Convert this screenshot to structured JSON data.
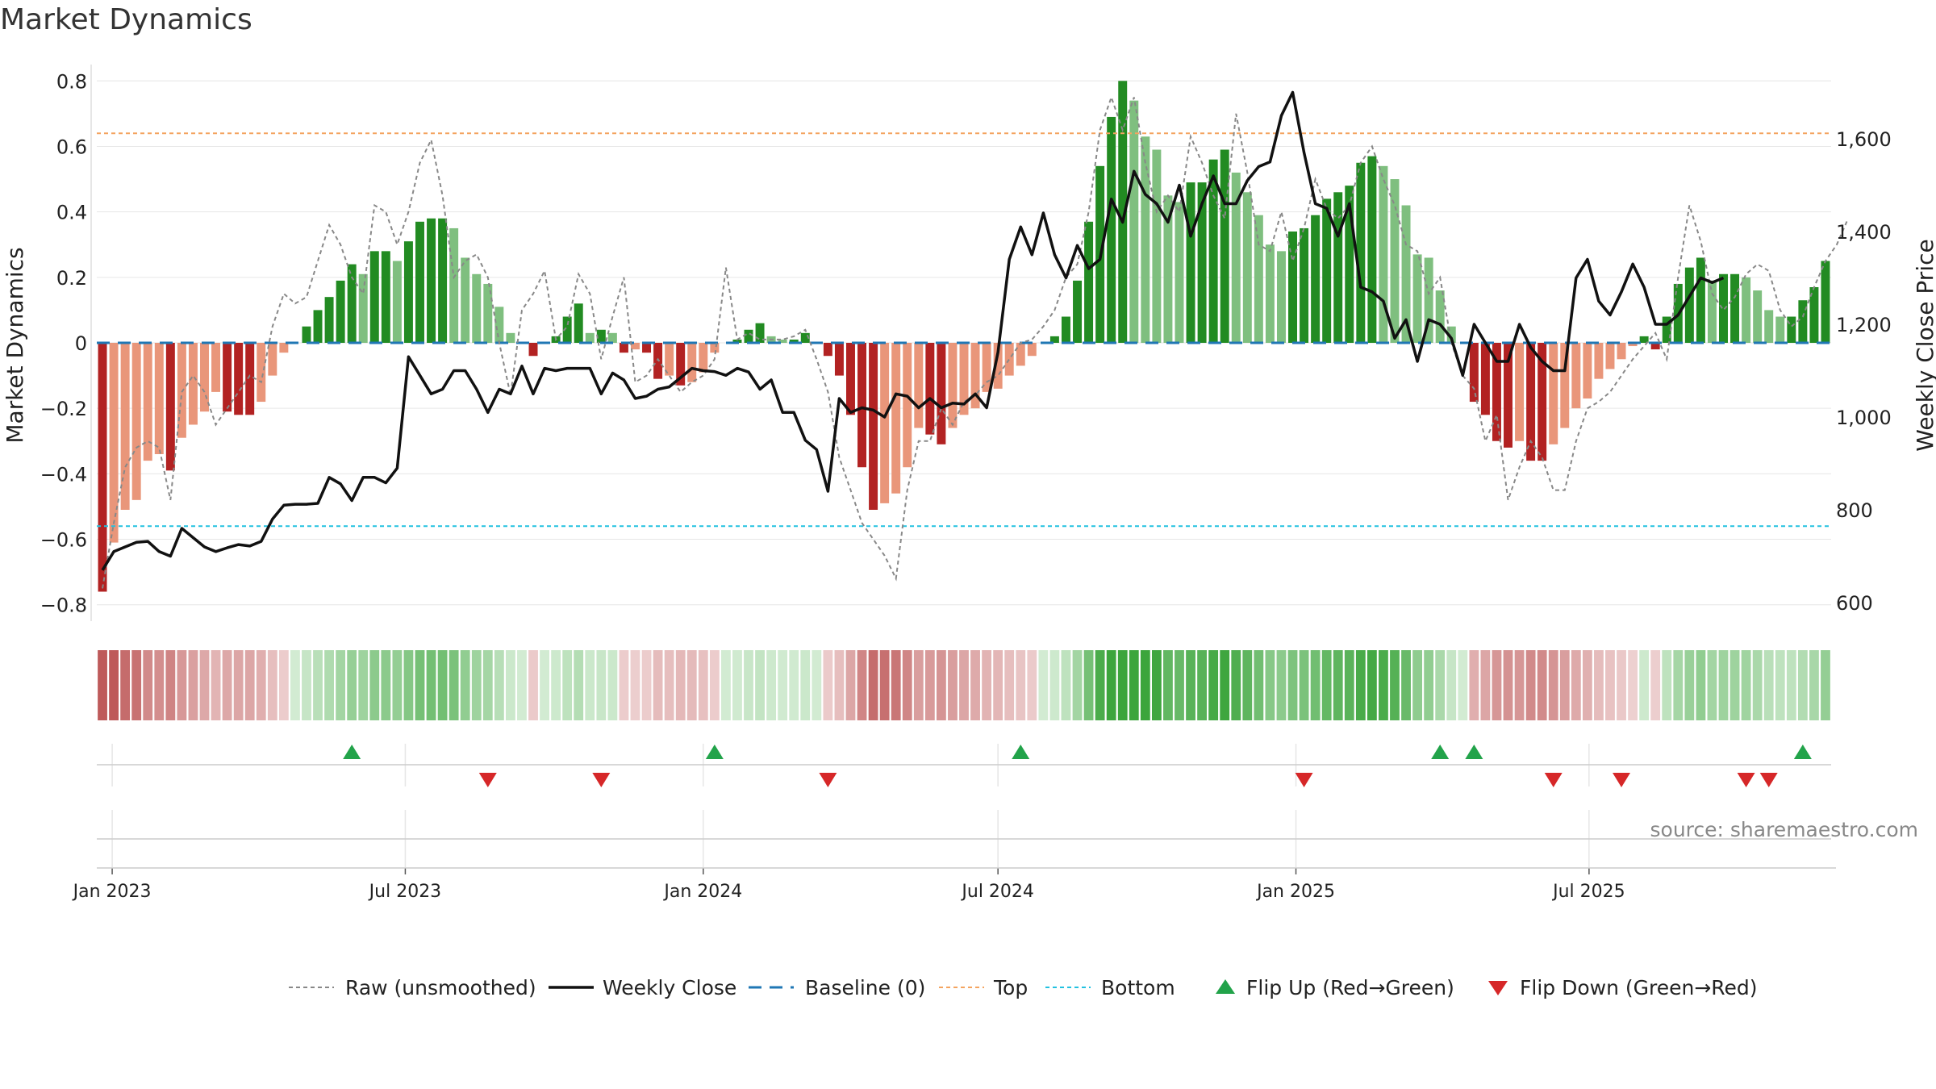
{
  "chart_data": {
    "type": "bar",
    "title": "Market Dynamics",
    "ylabel_left": "Market Dynamics",
    "ylabel_right": "Weekly Close Price",
    "ylim_left": [
      -0.85,
      0.85
    ],
    "ylim_right": [
      560,
      1760
    ],
    "left_ticks": [
      "0.8",
      "0.6",
      "0.4",
      "0.2",
      "0",
      "−0.2",
      "−0.4",
      "−0.6",
      "−0.8"
    ],
    "right_ticks": [
      "1,600",
      "1,400",
      "1,200",
      "1,000",
      "800",
      "600"
    ],
    "x_tick_labels": [
      "Jan 2023",
      "Jul 2023",
      "Jan 2024",
      "Jul 2024",
      "Jan 2025",
      "Jul 2025"
    ],
    "top_level": 0.64,
    "bottom_level": -0.56,
    "week_start": "2022-12-26",
    "bars": [
      -0.76,
      -0.61,
      -0.51,
      -0.48,
      -0.36,
      -0.34,
      -0.39,
      -0.29,
      -0.25,
      -0.21,
      -0.15,
      -0.21,
      -0.22,
      -0.22,
      -0.18,
      -0.1,
      -0.03,
      0,
      0.05,
      0.1,
      0.14,
      0.19,
      0.24,
      0.21,
      0.28,
      0.28,
      0.25,
      0.31,
      0.37,
      0.38,
      0.38,
      0.35,
      0.26,
      0.21,
      0.18,
      0.11,
      0.03,
      0,
      -0.04,
      0,
      0.02,
      0.08,
      0.12,
      0.03,
      0.04,
      0.03,
      -0.03,
      -0.02,
      -0.03,
      -0.11,
      -0.1,
      -0.13,
      -0.12,
      -0.09,
      -0.03,
      0,
      0.01,
      0.04,
      0.06,
      0.02,
      0.01,
      0.01,
      0.03,
      0,
      -0.04,
      -0.1,
      -0.22,
      -0.38,
      -0.51,
      -0.49,
      -0.46,
      -0.38,
      -0.26,
      -0.28,
      -0.31,
      -0.26,
      -0.22,
      -0.2,
      -0.15,
      -0.14,
      -0.1,
      -0.07,
      -0.04,
      0,
      0.02,
      0.08,
      0.19,
      0.37,
      0.54,
      0.69,
      0.8,
      0.74,
      0.63,
      0.59,
      0.45,
      0.43,
      0.49,
      0.49,
      0.56,
      0.59,
      0.52,
      0.46,
      0.39,
      0.3,
      0.28,
      0.34,
      0.35,
      0.39,
      0.44,
      0.46,
      0.48,
      0.55,
      0.57,
      0.54,
      0.5,
      0.42,
      0.27,
      0.26,
      0.16,
      0.05,
      0,
      -0.18,
      -0.22,
      -0.3,
      -0.32,
      -0.3,
      -0.36,
      -0.36,
      -0.31,
      -0.26,
      -0.2,
      -0.17,
      -0.11,
      -0.08,
      -0.05,
      -0.01,
      0.02,
      -0.02,
      0.08,
      0.18,
      0.23,
      0.26,
      0.19,
      0.21,
      0.21,
      0.2,
      0.16,
      0.1,
      0.08,
      0.08,
      0.13,
      0.17,
      0.25
    ],
    "raw": [
      -0.75,
      -0.55,
      -0.38,
      -0.32,
      -0.3,
      -0.32,
      -0.48,
      -0.15,
      -0.1,
      -0.15,
      -0.25,
      -0.2,
      -0.15,
      -0.1,
      -0.12,
      0.05,
      0.15,
      0.12,
      0.14,
      0.25,
      0.36,
      0.3,
      0.2,
      0.15,
      0.42,
      0.4,
      0.3,
      0.4,
      0.55,
      0.62,
      0.45,
      0.2,
      0.25,
      0.27,
      0.2,
      0,
      -0.16,
      0.1,
      0.15,
      0.22,
      0.01,
      0.05,
      0.21,
      0.15,
      -0.05,
      0.08,
      0.2,
      -0.12,
      -0.1,
      -0.05,
      -0.1,
      -0.15,
      -0.12,
      -0.1,
      -0.05,
      0.23,
      0.01,
      0.03,
      0.01,
      0.01,
      0.01,
      0.02,
      0.04,
      -0.05,
      -0.15,
      -0.35,
      -0.45,
      -0.55,
      -0.6,
      -0.65,
      -0.72,
      -0.45,
      -0.3,
      -0.3,
      -0.2,
      -0.25,
      -0.18,
      -0.16,
      -0.12,
      -0.1,
      -0.05,
      0,
      0.01,
      0.05,
      0.1,
      0.2,
      0.24,
      0.4,
      0.65,
      0.75,
      0.65,
      0.75,
      0.55,
      0.4,
      0.45,
      0.4,
      0.63,
      0.55,
      0.45,
      0.38,
      0.7,
      0.52,
      0.3,
      0.28,
      0.4,
      0.25,
      0.35,
      0.5,
      0.41,
      0.38,
      0.42,
      0.55,
      0.6,
      0.5,
      0.42,
      0.3,
      0.28,
      0.15,
      0.2,
      0,
      -0.1,
      -0.14,
      -0.3,
      -0.22,
      -0.48,
      -0.38,
      -0.3,
      -0.35,
      -0.45,
      -0.45,
      -0.3,
      -0.2,
      -0.18,
      -0.15,
      -0.1,
      -0.05,
      -0.01,
      0.03,
      -0.05,
      0.2,
      0.42,
      0.31,
      0.15,
      0.1,
      0.14,
      0.21,
      0.24,
      0.22,
      0.1,
      0.05,
      0.08,
      0.17,
      0.25,
      0.3,
      0.38
    ],
    "close": [
      670,
      710,
      720,
      730,
      732,
      710,
      700,
      760,
      740,
      720,
      710,
      718,
      725,
      722,
      732,
      780,
      810,
      812,
      812,
      814,
      870,
      856,
      820,
      870,
      870,
      858,
      890,
      1130,
      1090,
      1050,
      1060,
      1100,
      1100,
      1060,
      1010,
      1060,
      1050,
      1110,
      1050,
      1105,
      1100,
      1105,
      1105,
      1105,
      1050,
      1095,
      1080,
      1040,
      1045,
      1060,
      1065,
      1085,
      1105,
      1100,
      1098,
      1090,
      1105,
      1097,
      1060,
      1080,
      1010,
      1010,
      950,
      930,
      840,
      1040,
      1010,
      1020,
      1015,
      1000,
      1050,
      1045,
      1020,
      1040,
      1020,
      1030,
      1028,
      1050,
      1020,
      1140,
      1340,
      1410,
      1350,
      1440,
      1350,
      1300,
      1370,
      1320,
      1340,
      1470,
      1420,
      1530,
      1480,
      1460,
      1420,
      1500,
      1390,
      1460,
      1520,
      1460,
      1460,
      1510,
      1540,
      1550,
      1650,
      1700,
      1570,
      1460,
      1450,
      1390,
      1460,
      1280,
      1270,
      1250,
      1170,
      1210,
      1120,
      1210,
      1200,
      1170,
      1090,
      1200,
      1160,
      1120,
      1120,
      1200,
      1150,
      1120,
      1100,
      1100,
      1300,
      1340,
      1250,
      1220,
      1270,
      1330,
      1280,
      1200,
      1200,
      1220,
      1260,
      1300,
      1290,
      1300
    ],
    "flip_up_weeks": [
      22,
      54,
      81,
      118,
      121,
      150
    ],
    "flip_down_weeks": [
      34,
      44,
      64,
      106,
      128,
      134,
      145,
      147
    ],
    "series": [
      {
        "name": "Raw (unsmoothed)",
        "color": "#888888"
      },
      {
        "name": "Weekly Close",
        "color": "#111111"
      },
      {
        "name": "Baseline (0)",
        "color": "#1f77b4"
      },
      {
        "name": "Top",
        "color": "#f4a460"
      },
      {
        "name": "Bottom",
        "color": "#22c1e0"
      },
      {
        "name": "Flip Up (Red→Green)",
        "color": "#22a34a"
      },
      {
        "name": "Flip Down (Green→Red)",
        "color": "#d62728"
      }
    ],
    "colors": {
      "strong_green": "#228b22",
      "light_green": "#7fbf7f",
      "strong_red": "#b22222",
      "light_red": "#e9967a"
    }
  },
  "source_note": "source: sharemaestro.com"
}
